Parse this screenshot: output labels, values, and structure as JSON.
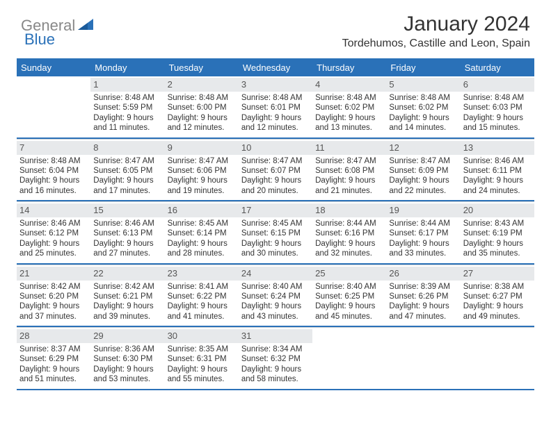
{
  "logo": {
    "general": "General",
    "blue": "Blue"
  },
  "title": "January 2024",
  "location": "Tordehumos, Castille and Leon, Spain",
  "colors": {
    "header_bg": "#2a71b8",
    "header_text": "#ffffff",
    "daynum_bg": "#e7e9eb",
    "border": "#2a71b8",
    "cell_border": "#cfd3d6",
    "text": "#333333",
    "logo_gray": "#888888",
    "logo_blue": "#2a71b8"
  },
  "days_of_week": [
    "Sunday",
    "Monday",
    "Tuesday",
    "Wednesday",
    "Thursday",
    "Friday",
    "Saturday"
  ],
  "weeks": [
    [
      {},
      {
        "n": "1",
        "sunrise": "8:48 AM",
        "sunset": "5:59 PM",
        "day_h": 9,
        "day_m": 11
      },
      {
        "n": "2",
        "sunrise": "8:48 AM",
        "sunset": "6:00 PM",
        "day_h": 9,
        "day_m": 12
      },
      {
        "n": "3",
        "sunrise": "8:48 AM",
        "sunset": "6:01 PM",
        "day_h": 9,
        "day_m": 12
      },
      {
        "n": "4",
        "sunrise": "8:48 AM",
        "sunset": "6:02 PM",
        "day_h": 9,
        "day_m": 13
      },
      {
        "n": "5",
        "sunrise": "8:48 AM",
        "sunset": "6:02 PM",
        "day_h": 9,
        "day_m": 14
      },
      {
        "n": "6",
        "sunrise": "8:48 AM",
        "sunset": "6:03 PM",
        "day_h": 9,
        "day_m": 15
      }
    ],
    [
      {
        "n": "7",
        "sunrise": "8:48 AM",
        "sunset": "6:04 PM",
        "day_h": 9,
        "day_m": 16
      },
      {
        "n": "8",
        "sunrise": "8:47 AM",
        "sunset": "6:05 PM",
        "day_h": 9,
        "day_m": 17
      },
      {
        "n": "9",
        "sunrise": "8:47 AM",
        "sunset": "6:06 PM",
        "day_h": 9,
        "day_m": 19
      },
      {
        "n": "10",
        "sunrise": "8:47 AM",
        "sunset": "6:07 PM",
        "day_h": 9,
        "day_m": 20
      },
      {
        "n": "11",
        "sunrise": "8:47 AM",
        "sunset": "6:08 PM",
        "day_h": 9,
        "day_m": 21
      },
      {
        "n": "12",
        "sunrise": "8:47 AM",
        "sunset": "6:09 PM",
        "day_h": 9,
        "day_m": 22
      },
      {
        "n": "13",
        "sunrise": "8:46 AM",
        "sunset": "6:11 PM",
        "day_h": 9,
        "day_m": 24
      }
    ],
    [
      {
        "n": "14",
        "sunrise": "8:46 AM",
        "sunset": "6:12 PM",
        "day_h": 9,
        "day_m": 25
      },
      {
        "n": "15",
        "sunrise": "8:46 AM",
        "sunset": "6:13 PM",
        "day_h": 9,
        "day_m": 27
      },
      {
        "n": "16",
        "sunrise": "8:45 AM",
        "sunset": "6:14 PM",
        "day_h": 9,
        "day_m": 28
      },
      {
        "n": "17",
        "sunrise": "8:45 AM",
        "sunset": "6:15 PM",
        "day_h": 9,
        "day_m": 30
      },
      {
        "n": "18",
        "sunrise": "8:44 AM",
        "sunset": "6:16 PM",
        "day_h": 9,
        "day_m": 32
      },
      {
        "n": "19",
        "sunrise": "8:44 AM",
        "sunset": "6:17 PM",
        "day_h": 9,
        "day_m": 33
      },
      {
        "n": "20",
        "sunrise": "8:43 AM",
        "sunset": "6:19 PM",
        "day_h": 9,
        "day_m": 35
      }
    ],
    [
      {
        "n": "21",
        "sunrise": "8:42 AM",
        "sunset": "6:20 PM",
        "day_h": 9,
        "day_m": 37
      },
      {
        "n": "22",
        "sunrise": "8:42 AM",
        "sunset": "6:21 PM",
        "day_h": 9,
        "day_m": 39
      },
      {
        "n": "23",
        "sunrise": "8:41 AM",
        "sunset": "6:22 PM",
        "day_h": 9,
        "day_m": 41
      },
      {
        "n": "24",
        "sunrise": "8:40 AM",
        "sunset": "6:24 PM",
        "day_h": 9,
        "day_m": 43
      },
      {
        "n": "25",
        "sunrise": "8:40 AM",
        "sunset": "6:25 PM",
        "day_h": 9,
        "day_m": 45
      },
      {
        "n": "26",
        "sunrise": "8:39 AM",
        "sunset": "6:26 PM",
        "day_h": 9,
        "day_m": 47
      },
      {
        "n": "27",
        "sunrise": "8:38 AM",
        "sunset": "6:27 PM",
        "day_h": 9,
        "day_m": 49
      }
    ],
    [
      {
        "n": "28",
        "sunrise": "8:37 AM",
        "sunset": "6:29 PM",
        "day_h": 9,
        "day_m": 51
      },
      {
        "n": "29",
        "sunrise": "8:36 AM",
        "sunset": "6:30 PM",
        "day_h": 9,
        "day_m": 53
      },
      {
        "n": "30",
        "sunrise": "8:35 AM",
        "sunset": "6:31 PM",
        "day_h": 9,
        "day_m": 55
      },
      {
        "n": "31",
        "sunrise": "8:34 AM",
        "sunset": "6:32 PM",
        "day_h": 9,
        "day_m": 58
      },
      {},
      {},
      {}
    ]
  ],
  "labels": {
    "sunrise": "Sunrise:",
    "sunset": "Sunset:",
    "daylight": "Daylight:",
    "hours": "hours",
    "and": "and",
    "minutes": "minutes."
  }
}
